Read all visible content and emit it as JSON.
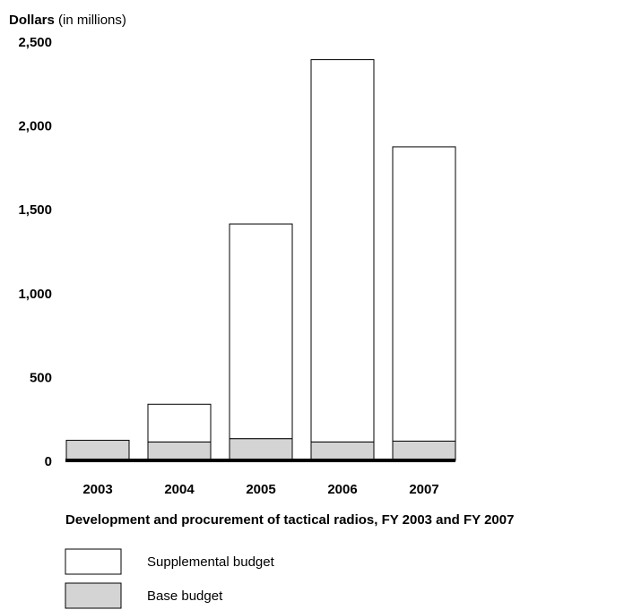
{
  "chart_data": {
    "type": "bar",
    "stacked": true,
    "title": "Development and procurement of tactical radios, FY 2003 and FY 2007",
    "ylabel_bold": "Dollars",
    "ylabel_rest": " (in millions)",
    "xlabel": "",
    "ylim": [
      0,
      2500
    ],
    "y_ticks": [
      "0",
      "500",
      "1,000",
      "1,500",
      "2,000",
      "2,500"
    ],
    "y_tick_values": [
      0,
      500,
      1000,
      1500,
      2000,
      2500
    ],
    "categories": [
      "2003",
      "2004",
      "2005",
      "2006",
      "2007"
    ],
    "series": [
      {
        "name": "Base budget",
        "color": "#d4d4d4",
        "values": [
          120,
          110,
          130,
          110,
          115
        ]
      },
      {
        "name": "Supplemental budget",
        "color": "#ffffff",
        "values": [
          0,
          225,
          1280,
          2280,
          1755
        ]
      }
    ],
    "legend": [
      {
        "label": "Supplemental budget",
        "color": "#ffffff"
      },
      {
        "label": "Base budget",
        "color": "#d4d4d4"
      }
    ],
    "legend_position": "bottom-left",
    "grid": false
  }
}
